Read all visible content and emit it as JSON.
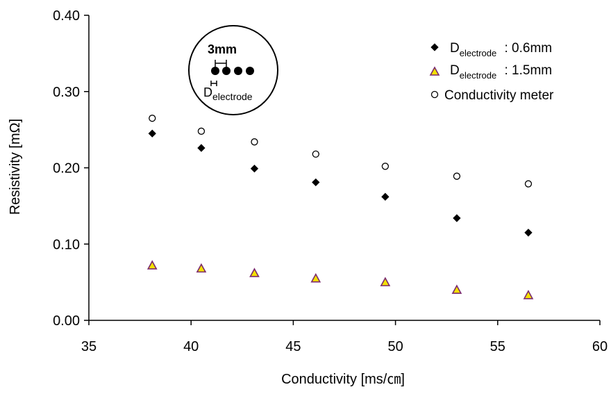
{
  "chart_data": {
    "type": "scatter",
    "xlabel": "Conductivity [ms/㎝]",
    "ylabel": "Resistivity [mΩ]",
    "xlim": [
      35,
      60
    ],
    "ylim": [
      0,
      0.4
    ],
    "x_ticks": [
      "35",
      "40",
      "45",
      "50",
      "55",
      "60"
    ],
    "y_ticks": [
      "0.00",
      "0.10",
      "0.20",
      "0.30",
      "0.40"
    ],
    "grid": false,
    "legend_position": "top-right",
    "series": [
      {
        "name_main": "D",
        "name_sub": "electrode",
        "name_value": " : 0.6mm",
        "marker": "diamond",
        "color": "#000000",
        "x": [
          38.1,
          40.5,
          43.1,
          46.1,
          49.5,
          53.0,
          56.5
        ],
        "y": [
          0.245,
          0.226,
          0.199,
          0.181,
          0.162,
          0.134,
          0.115
        ]
      },
      {
        "name_main": "D",
        "name_sub": "electrode",
        "name_value": " : 1.5mm",
        "marker": "triangle",
        "color": "#f3e100",
        "edge": "#7b2a6e",
        "x": [
          38.1,
          40.5,
          43.1,
          46.1,
          49.5,
          53.0,
          56.5
        ],
        "y": [
          0.072,
          0.068,
          0.062,
          0.055,
          0.05,
          0.04,
          0.033
        ]
      },
      {
        "name": "Conductivity meter",
        "marker": "circle-open",
        "color": "#000000",
        "x": [
          38.1,
          40.5,
          43.1,
          46.1,
          49.5,
          53.0,
          56.5
        ],
        "y": [
          0.265,
          0.248,
          0.234,
          0.218,
          0.202,
          0.189,
          0.179
        ]
      }
    ],
    "inset": {
      "spacing_label": "3mm",
      "diameter_main": "D",
      "diameter_sub": "electrode"
    }
  }
}
